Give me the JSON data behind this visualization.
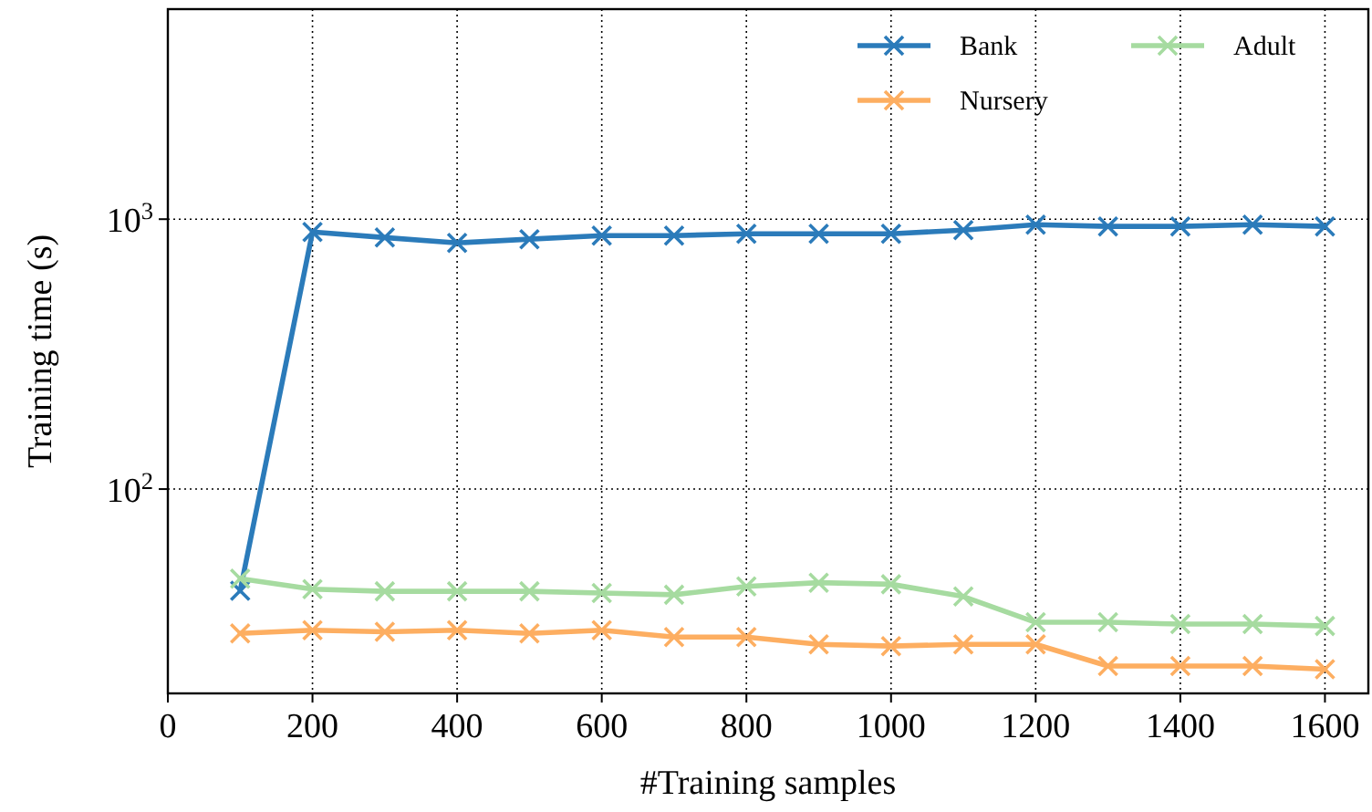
{
  "chart_data": {
    "type": "line",
    "xlabel": "#Training samples",
    "ylabel": "Training time (s)",
    "x": [
      100,
      200,
      300,
      400,
      500,
      600,
      700,
      800,
      900,
      1000,
      1100,
      1200,
      1300,
      1400,
      1500,
      1600
    ],
    "series": [
      {
        "name": "Bank",
        "color": "#2b7bba",
        "values": [
          42,
          897,
          855,
          817,
          843,
          869,
          869,
          883,
          883,
          883,
          911,
          954,
          940,
          940,
          954,
          940
        ]
      },
      {
        "name": "Adult",
        "color": "#a6dba0",
        "values": [
          46.6,
          42.6,
          41.8,
          41.8,
          41.8,
          41.2,
          40.6,
          43.6,
          45,
          44.4,
          40,
          32.1,
          32.1,
          31.6,
          31.6,
          31.1
        ]
      },
      {
        "name": "Nursery",
        "color": "#fdae61",
        "values": [
          29.2,
          30,
          29.6,
          30,
          29.2,
          30,
          28.3,
          28.3,
          26.6,
          26.2,
          26.6,
          26.6,
          22.1,
          22.1,
          22.1,
          21.5
        ]
      }
    ],
    "xlim": [
      0,
      1660
    ],
    "xticks": [
      0,
      200,
      400,
      600,
      800,
      1000,
      1200,
      1400,
      1600
    ],
    "ylim": [
      17.5,
      6000
    ],
    "yticks": [
      {
        "value": 100,
        "label": "10$^{2}$"
      },
      {
        "value": 1000,
        "label": "10$^{3}$"
      }
    ],
    "log": "y",
    "grid": true,
    "legend": "top right",
    "marker": "cross",
    "line_style": "solid"
  }
}
